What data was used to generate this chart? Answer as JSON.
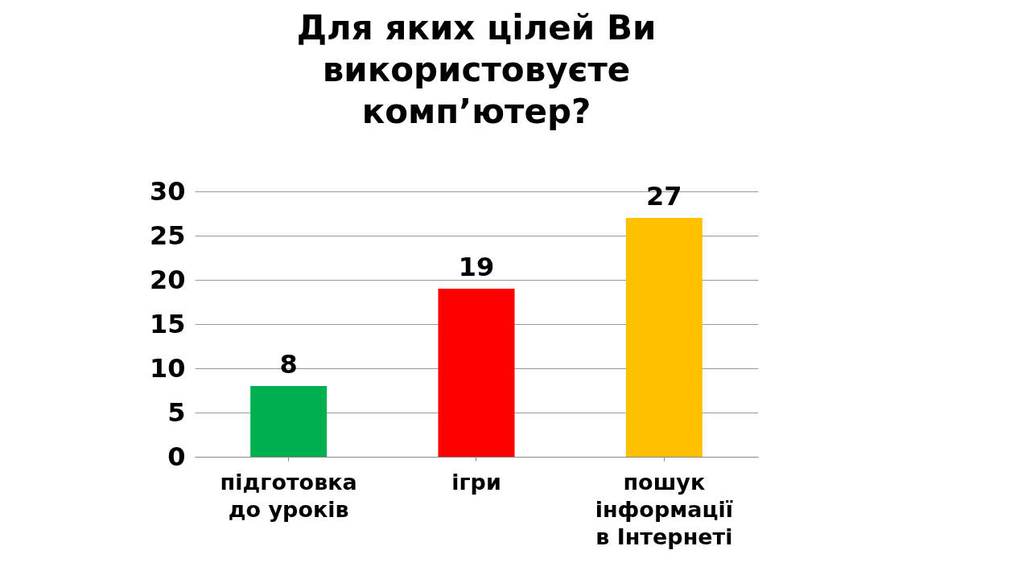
{
  "chart_data": {
    "type": "bar",
    "title": "Для яких цілей Ви використовуєте комп’ютер?",
    "categories": [
      "підготовка до уроків",
      "ігри",
      "пошук інформації в Інтернеті"
    ],
    "values": [
      8,
      19,
      27
    ],
    "colors": [
      "#00b050",
      "#ff0000",
      "#ffc000"
    ],
    "ylim": [
      0,
      30
    ],
    "yticks": [
      0,
      5,
      10,
      15,
      20,
      25,
      30
    ],
    "grid": "y",
    "data_labels": true
  }
}
